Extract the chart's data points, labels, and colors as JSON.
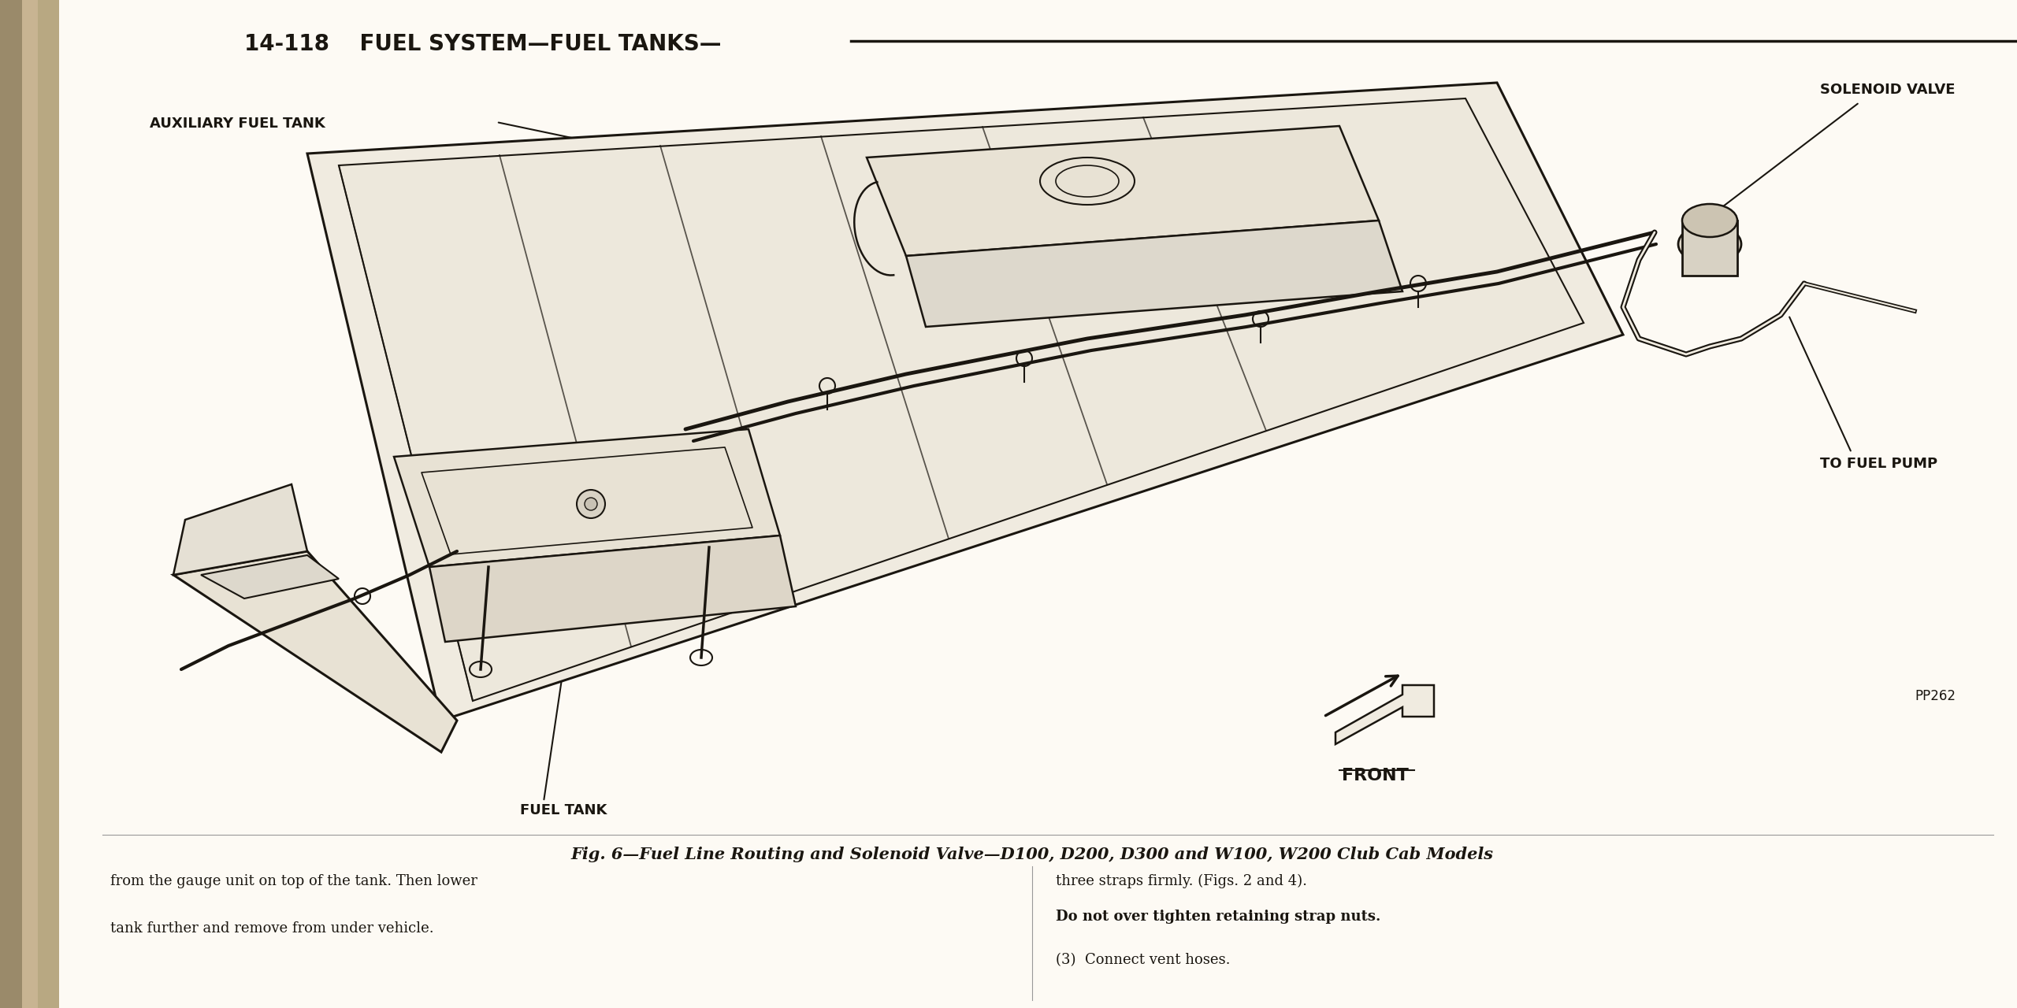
{
  "page_bg": "#f8f4ec",
  "left_bar_color1": "#b8a882",
  "left_bar_color2": "#9a8a6a",
  "header_text": "14-118    FUEL SYSTEM—FUEL TANKS—",
  "header_fontsize": 20,
  "label_auxiliary": "AUXILIARY FUEL TANK",
  "label_solenoid": "SOLENOID VALVE",
  "label_fuel_pump": "TO FUEL PUMP",
  "label_front": "FRONT",
  "label_fuel_tank": "FUEL TANK",
  "label_pp": "PP262",
  "fig_caption": "Fig. 6—Fuel Line Routing and Solenoid Valve—D100, D200, D300 and W100, W200 Club Cab Models",
  "body_left_1": "from the gauge unit on top of the tank. Then lower",
  "body_left_2": "tank further and remove from under vehicle.",
  "body_right_1": "three straps firmly. (Figs. 2 and 4).",
  "body_right_2": "Do not over tighten retaining strap nuts.",
  "body_right_3": "(3)  Connect vent hoses.",
  "line_color": "#1a1610",
  "bg_white": "#fdfaf4"
}
